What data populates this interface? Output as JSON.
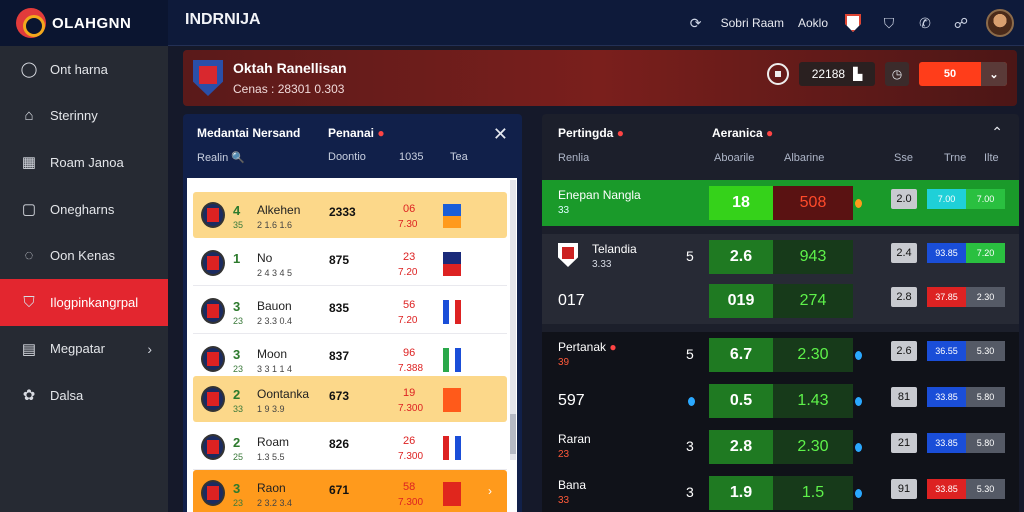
{
  "topbar": {
    "logo_text": "OLAHGNN",
    "title": "INDRNIJA",
    "link1": "Sobri Raam",
    "link2": "Aoklo"
  },
  "sidebar": {
    "items": [
      {
        "label": "Ont harna",
        "icon": "chat-icon"
      },
      {
        "label": "Sterinny",
        "icon": "home-icon"
      },
      {
        "label": "Roam Janoa",
        "icon": "calendar-icon"
      },
      {
        "label": "Onegharns",
        "icon": "document-icon"
      },
      {
        "label": "Oon Kenas",
        "icon": "message-icon"
      },
      {
        "label": "Ilogpinkangrpal",
        "icon": "shield-icon",
        "active": true
      },
      {
        "label": "Megpatar",
        "icon": "grid-icon"
      },
      {
        "label": "Dalsa",
        "icon": "settings-icon"
      }
    ]
  },
  "banner": {
    "title": "Oktah Ranellisan",
    "subtitle": "Cenas : 28301 0.303",
    "score": "22188",
    "live": "50",
    "accent": "#ff3d1a"
  },
  "left_panel": {
    "title": "Medantai Nersand",
    "tab": "Penanai",
    "sub1": "Realin",
    "sub2": "Doontio",
    "sub3": "1035",
    "sub4": "Tea",
    "rows": [
      {
        "num": "4",
        "small": "35",
        "name": "Alkehen",
        "code": "2 1.6 1.6",
        "val": "2333",
        "o1": "06",
        "o2": "7.30",
        "flag": [
          "#1a5ed8",
          "#ff9a1c"
        ],
        "style": "hl"
      },
      {
        "num": "1",
        "small": "",
        "name": "No",
        "code": "2 4 3 4 5",
        "val": "875",
        "o1": "23",
        "o2": "7.20",
        "flag": [
          "#1a2a7a",
          "#d22"
        ],
        "style": ""
      },
      {
        "num": "3",
        "small": "23",
        "name": "Bauon",
        "code": "2 3.3 0.4",
        "val": "835",
        "o1": "56",
        "o2": "7.20",
        "flag": [
          "#1a4ed8",
          "#fff",
          "#d22"
        ],
        "style": ""
      },
      {
        "num": "3",
        "small": "23",
        "name": "Moon",
        "code": "3 3 1 1 4",
        "val": "837",
        "o1": "96",
        "o2": "7.388",
        "flag": [
          "#2aa84a",
          "#fff",
          "#1a4ed8"
        ],
        "style": ""
      },
      {
        "num": "2",
        "small": "33",
        "name": "Oontanka",
        "code": "1 9 3.9",
        "val": "673",
        "o1": "19",
        "o2": "7.300",
        "flag": [
          "#ff5a1a",
          "#ff5a1a"
        ],
        "style": "hl"
      },
      {
        "num": "2",
        "small": "25",
        "name": "Roam",
        "code": "1.3 5.5",
        "val": "826",
        "o1": "26",
        "o2": "7.300",
        "flag": [
          "#d22",
          "#fff",
          "#1a4ed8"
        ],
        "style": ""
      },
      {
        "num": "3",
        "small": "23",
        "name": "Raon",
        "code": "2 3.2 3.4",
        "val": "671",
        "o1": "58",
        "o2": "7.300",
        "flag": [
          "#e0261d",
          "#e0261d"
        ],
        "style": "or"
      }
    ]
  },
  "right_panel": {
    "title": "Pertingda",
    "title2": "Aeranica",
    "cols": [
      "Renlia",
      "Aboarile",
      "Albarine",
      "Sse",
      "Trne",
      "Ilte"
    ],
    "rows": [
      {
        "team": "Enepan Nangla",
        "sub": "33",
        "s": "",
        "o1": "18",
        "o2": "508",
        "dot": "or",
        "n": "2.0",
        "pill": [
          "7.00",
          "7.00"
        ],
        "pill_colors": [
          "#1fd0d8",
          "#2ac040"
        ],
        "bg": "green",
        "o1style": "bright",
        "o2style": "red"
      },
      {
        "team": "Telandia",
        "sub": "3.33",
        "s": "5",
        "o1": "2.6",
        "o2": "943",
        "dot": "",
        "n": "2.4",
        "pill": [
          "93.85",
          "7.20"
        ],
        "pill_colors": [
          "#1a4ed8",
          "#2ac040"
        ],
        "bg": "dark",
        "crest": true
      },
      {
        "team": "",
        "big": "017",
        "sub": "",
        "s": "",
        "o1": "019",
        "o2": "274",
        "dot": "",
        "n": "2.8",
        "pill": [
          "37.85",
          "2.30"
        ],
        "pill_colors": [
          "#d22",
          "#555a66"
        ],
        "bg": "dark"
      },
      {
        "team": "Pertanak",
        "sub": "39",
        "s": "5",
        "o1": "6.7",
        "o2": "2.30",
        "dot": "blue",
        "n": "2.6",
        "pill": [
          "36.55",
          "5.30"
        ],
        "pill_colors": [
          "#1a4ed8",
          "#555a66"
        ],
        "bg": "black"
      },
      {
        "team": "",
        "big": "597",
        "sub": "",
        "s": "",
        "o1": "0.5",
        "o2": "1.43",
        "dot": "blue",
        "n": "81",
        "pill": [
          "33.85",
          "5.80"
        ],
        "pill_colors": [
          "#1a4ed8",
          "#555a66"
        ],
        "bg": "black",
        "sdot": true
      },
      {
        "team": "Raran",
        "sub": "23",
        "s": "3",
        "o1": "2.8",
        "o2": "2.30",
        "dot": "blue",
        "n": "21",
        "pill": [
          "33.85",
          "5.80"
        ],
        "pill_colors": [
          "#1a4ed8",
          "#555a66"
        ],
        "bg": "black"
      },
      {
        "team": "Bana",
        "sub": "33",
        "s": "3",
        "o1": "1.9",
        "o2": "1.5",
        "dot": "blue",
        "n": "91",
        "pill": [
          "33.85",
          "5.30"
        ],
        "pill_colors": [
          "#d22",
          "#555a66"
        ],
        "bg": "black"
      }
    ]
  }
}
